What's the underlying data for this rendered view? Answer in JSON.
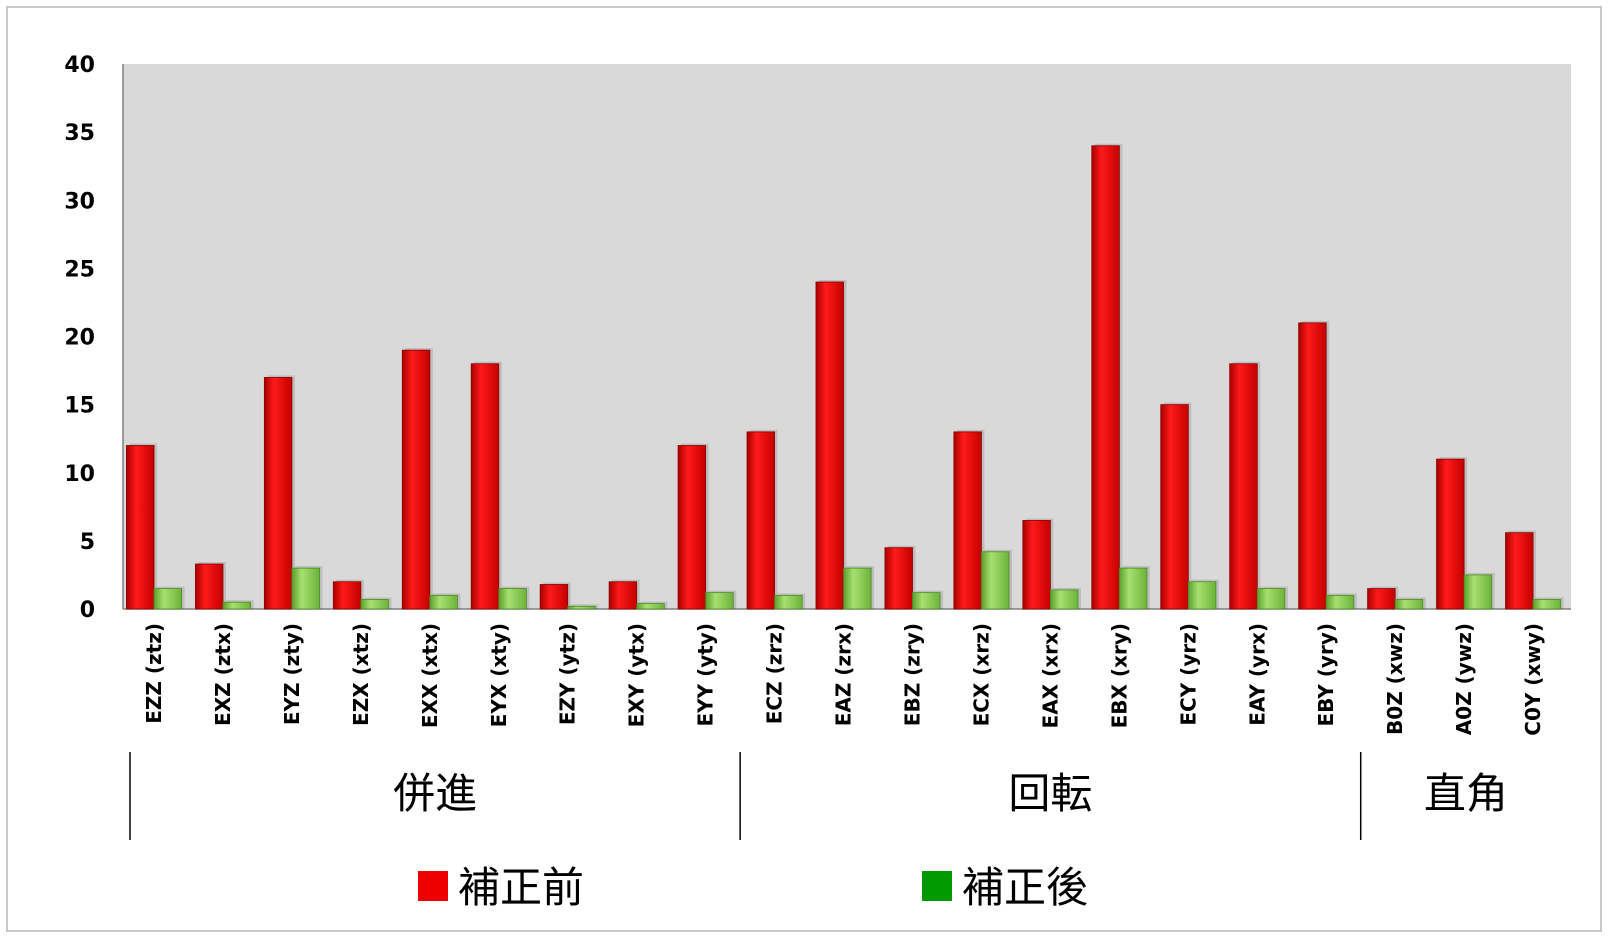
{
  "chart_data": {
    "type": "bar",
    "title": "",
    "xlabel": "",
    "ylabel": "",
    "ylim": [
      0,
      40
    ],
    "yticks": [
      "0",
      "5",
      "10",
      "15",
      "20",
      "25",
      "30",
      "35",
      "40"
    ],
    "grid": false,
    "categories": [
      "EZZ (ztz)",
      "EXZ (ztx)",
      "EYZ (zty)",
      "EZX (xtz)",
      "EXX (xtx)",
      "EYX (xty)",
      "EZY (ytz)",
      "EXY (ytx)",
      "EYY (yty)",
      "ECZ (zrz)",
      "EAZ (zrx)",
      "EBZ (zry)",
      "ECX (xrz)",
      "EAX (xrx)",
      "EBX (xry)",
      "ECY (yrz)",
      "EAY (yrx)",
      "EBY (yry)",
      "B0Z (xwz)",
      "A0Z (ywz)",
      "C0Y (xwy)"
    ],
    "series": [
      {
        "name": "補正前",
        "color": "#ee0000",
        "values": [
          12,
          3.3,
          17,
          2,
          19,
          18,
          1.8,
          2,
          12,
          13,
          24,
          4.5,
          13,
          6.5,
          34,
          15,
          18,
          21,
          1.5,
          11,
          5.6
        ]
      },
      {
        "name": "補正後",
        "color": "#8fd14f",
        "values": [
          1.5,
          0.5,
          3,
          0.7,
          1,
          1.5,
          0.2,
          0.4,
          1.2,
          1,
          3,
          1.2,
          4.2,
          1.4,
          3,
          2,
          1.5,
          1,
          0.7,
          2.5,
          0.7
        ]
      }
    ],
    "groups": [
      {
        "label": "併進",
        "start": 0,
        "end": 8
      },
      {
        "label": "回転",
        "start": 9,
        "end": 17
      },
      {
        "label": "直角",
        "start": 18,
        "end": 20
      }
    ],
    "legend": {
      "placement": "bottom",
      "items": [
        {
          "label": "補正前",
          "swatch": "#ee0000"
        },
        {
          "label": "補正後",
          "swatch": "#009900"
        }
      ]
    },
    "plot_background": "#d9d9d9"
  }
}
